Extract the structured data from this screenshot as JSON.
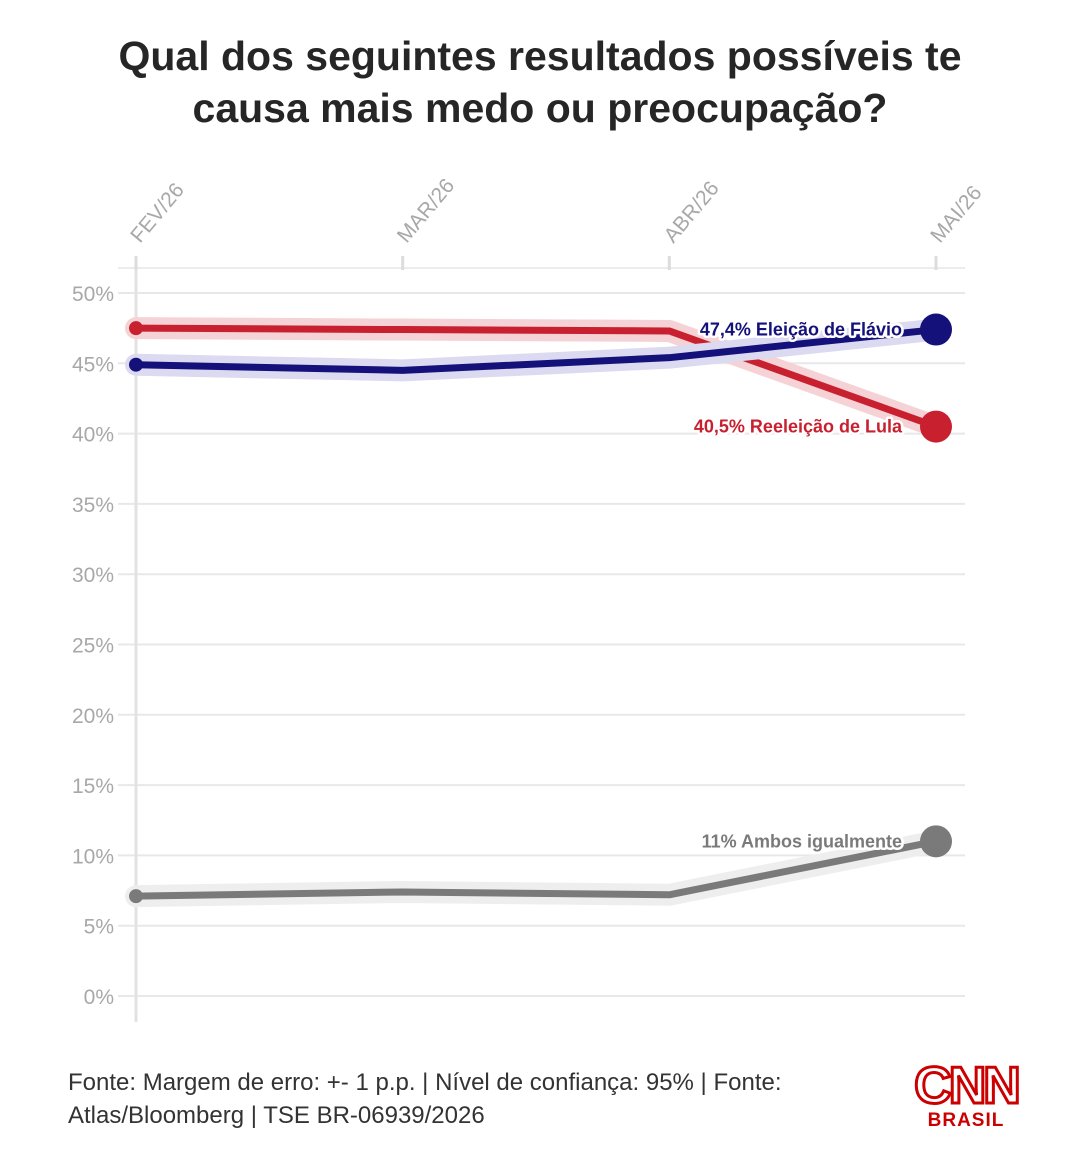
{
  "title": "Qual dos seguintes resultados possíveis te causa mais medo ou preocupação?",
  "footer": "Fonte: Margem de erro: +- 1 p.p. | Nível de confiança: 95% | Fonte: Atlas/Bloomberg | TSE BR-06939/2026",
  "logo": {
    "main": "CNN",
    "sub": "BRASIL",
    "color": "#cc0000"
  },
  "chart_data": {
    "type": "line",
    "x": [
      "FEV/26",
      "MAR/26",
      "ABR/26",
      "MAI/26"
    ],
    "ylim": [
      0,
      50
    ],
    "yticks": [
      "0%",
      "5%",
      "10%",
      "15%",
      "20%",
      "25%",
      "30%",
      "35%",
      "40%",
      "45%",
      "50%"
    ],
    "grid": true,
    "series": [
      {
        "name": "Reeleição de Lula",
        "label": "40,5% Reeleição de Lula",
        "color": "#c8202f",
        "glow": "#f4d2d6",
        "values": [
          47.5,
          47.4,
          47.3,
          40.5
        ]
      },
      {
        "name": "Eleição de Flávio",
        "label": "47,4% Eleição de Flávio",
        "color": "#15117a",
        "glow": "#dcdaf0",
        "values": [
          44.9,
          44.5,
          45.4,
          47.4
        ]
      },
      {
        "name": "Ambos igualmente",
        "label": "11% Ambos igualmente",
        "color": "#7a7a7a",
        "glow": "#eeeeee",
        "values": [
          7.1,
          7.4,
          7.2,
          11.0
        ]
      }
    ]
  }
}
